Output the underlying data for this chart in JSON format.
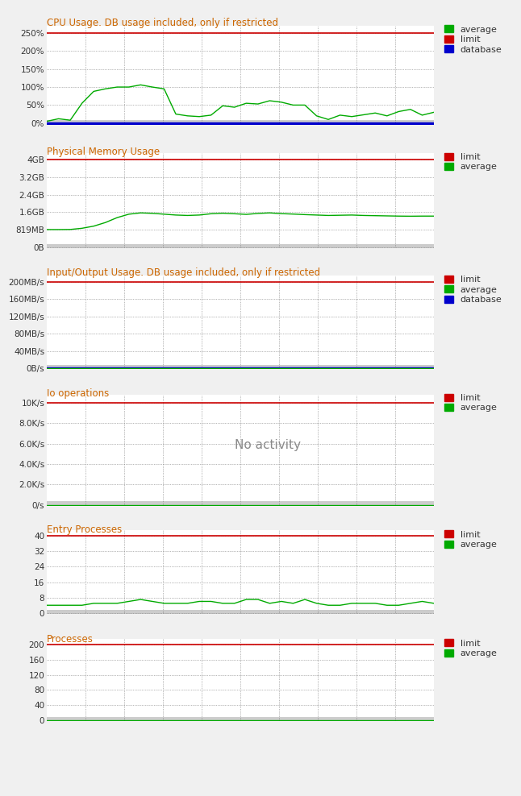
{
  "panels": [
    {
      "title": "CPU Usage. DB usage included, only if restricted",
      "ytick_labels": [
        "0%",
        "50%",
        "100%",
        "150%",
        "200%",
        "250%"
      ],
      "yvals": [
        0,
        50,
        100,
        150,
        200,
        250
      ],
      "ylim": [
        -5,
        270
      ],
      "limit": 250,
      "has_database": true,
      "legend": [
        "average",
        "limit",
        "database"
      ],
      "legend_colors": [
        "#00aa00",
        "#cc0000",
        "#0000cc"
      ],
      "avg_color": "#00aa00",
      "limit_color": "#cc0000",
      "db_color": "#0000cc",
      "avg_data": [
        5,
        12,
        8,
        55,
        88,
        95,
        100,
        100,
        106,
        100,
        95,
        25,
        20,
        18,
        22,
        48,
        44,
        55,
        53,
        62,
        58,
        50,
        50,
        20,
        10,
        22,
        18,
        23,
        28,
        20,
        32,
        38,
        22,
        30
      ],
      "db_data": [
        0,
        0,
        0,
        0,
        0,
        0,
        0,
        0,
        0,
        0,
        0,
        0,
        0,
        0,
        0,
        0,
        0,
        0,
        0,
        0,
        0,
        0,
        0,
        0,
        0,
        0,
        0,
        0,
        0,
        0,
        0,
        0,
        0,
        0
      ]
    },
    {
      "title": "Physical Memory Usage",
      "ytick_labels": [
        "0B",
        "819MB",
        "1.6GB",
        "2.4GB",
        "3.2GB",
        "4GB"
      ],
      "yvals": [
        0,
        819,
        1638,
        2457,
        3277,
        4096
      ],
      "ylim": [
        -50,
        4400
      ],
      "limit": 4096,
      "has_database": false,
      "legend": [
        "limit",
        "average"
      ],
      "legend_colors": [
        "#cc0000",
        "#00aa00"
      ],
      "avg_color": "#00aa00",
      "limit_color": "#cc0000",
      "avg_data": [
        820,
        820,
        825,
        880,
        980,
        1150,
        1380,
        1540,
        1600,
        1580,
        1540,
        1500,
        1480,
        1500,
        1560,
        1585,
        1560,
        1530,
        1575,
        1600,
        1565,
        1545,
        1520,
        1500,
        1480,
        1490,
        1500,
        1480,
        1470,
        1460,
        1450,
        1445,
        1450,
        1450
      ]
    },
    {
      "title": "Input/Output Usage. DB usage included, only if restricted",
      "ytick_labels": [
        "0B/s",
        "40MB/s",
        "80MB/s",
        "120MB/s",
        "160MB/s",
        "200MB/s"
      ],
      "yvals": [
        0,
        40,
        80,
        120,
        160,
        200
      ],
      "ylim": [
        -2,
        215
      ],
      "limit": 200,
      "has_database": true,
      "legend": [
        "limit",
        "average",
        "database"
      ],
      "legend_colors": [
        "#cc0000",
        "#00aa00",
        "#0000cc"
      ],
      "avg_color": "#00aa00",
      "limit_color": "#cc0000",
      "db_color": "#0000cc",
      "avg_data": [
        0,
        0,
        0,
        0,
        0,
        0,
        0,
        0,
        0,
        0,
        0,
        0,
        0,
        0,
        0,
        0,
        0,
        0,
        0,
        0,
        0,
        0,
        0,
        0,
        0,
        0,
        0,
        0,
        0,
        0,
        0,
        0,
        0,
        0
      ],
      "db_data": [
        0,
        0,
        0,
        0,
        0,
        0,
        0,
        0,
        0,
        0,
        0,
        0,
        0,
        0,
        0,
        0,
        0,
        0,
        0,
        0,
        0,
        0,
        0,
        0,
        0,
        0,
        0,
        0,
        0,
        0,
        0,
        0,
        0,
        0
      ]
    },
    {
      "title": "Io operations",
      "ytick_labels": [
        "0/s",
        "2.0K/s",
        "4.0K/s",
        "6.0K/s",
        "8.0K/s",
        "10K/s"
      ],
      "yvals": [
        0,
        2000,
        4000,
        6000,
        8000,
        10000
      ],
      "ylim": [
        -100,
        10800
      ],
      "limit": 10000,
      "has_database": false,
      "legend": [
        "limit",
        "average"
      ],
      "legend_colors": [
        "#cc0000",
        "#00aa00"
      ],
      "avg_color": "#00aa00",
      "limit_color": "#cc0000",
      "avg_data": [
        0,
        0,
        0,
        0,
        0,
        0,
        0,
        0,
        0,
        0,
        0,
        0,
        0,
        0,
        0,
        0,
        0,
        0,
        0,
        0,
        0,
        0,
        0,
        0,
        0,
        0,
        0,
        0,
        0,
        0,
        0,
        0,
        0,
        0
      ],
      "watermark": "No activity"
    },
    {
      "title": "Entry Processes",
      "ytick_labels": [
        "0",
        "8",
        "16",
        "24",
        "32",
        "40"
      ],
      "yvals": [
        0,
        8,
        16,
        24,
        32,
        40
      ],
      "ylim": [
        -0.5,
        43
      ],
      "limit": 40,
      "has_database": false,
      "legend": [
        "limit",
        "average"
      ],
      "legend_colors": [
        "#cc0000",
        "#00aa00"
      ],
      "avg_color": "#00aa00",
      "limit_color": "#cc0000",
      "avg_data": [
        4,
        4,
        4,
        4,
        5,
        5,
        5,
        6,
        7,
        6,
        5,
        5,
        5,
        6,
        6,
        5,
        5,
        7,
        7,
        5,
        6,
        5,
        7,
        5,
        4,
        4,
        5,
        5,
        5,
        4,
        4,
        5,
        6,
        5
      ]
    },
    {
      "title": "Processes",
      "ytick_labels": [
        "0",
        "40",
        "80",
        "120",
        "160",
        "200"
      ],
      "yvals": [
        0,
        40,
        80,
        120,
        160,
        200
      ],
      "ylim": [
        -2,
        215
      ],
      "limit": 200,
      "has_database": false,
      "legend": [
        "limit",
        "average"
      ],
      "legend_colors": [
        "#cc0000",
        "#00aa00"
      ],
      "avg_color": "#00aa00",
      "limit_color": "#cc0000",
      "avg_data": [
        1,
        1,
        1,
        1,
        1,
        1,
        1,
        1,
        1,
        1,
        1,
        1,
        1,
        1,
        1,
        1,
        1,
        1,
        1,
        1,
        1,
        1,
        1,
        1,
        1,
        1,
        1,
        1,
        1,
        1,
        1,
        1,
        1,
        1
      ]
    }
  ],
  "bg_color": "#f0f0f0",
  "plot_bg": "#ffffff",
  "grid_color": "#777777",
  "title_color": "#cc6600",
  "tick_color": "#333333",
  "n_points": 34,
  "n_vlines": 9,
  "shadow_color": "#999999",
  "panel_heights": [
    140,
    140,
    130,
    145,
    135,
    120
  ]
}
